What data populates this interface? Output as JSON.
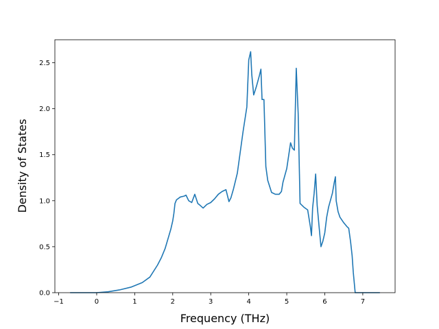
{
  "chart_data": {
    "type": "line",
    "title": "",
    "xlabel": "Frequency (THz)",
    "ylabel": "Density of States",
    "xlim": [
      -1.1,
      7.85
    ],
    "ylim": [
      0.0,
      2.75
    ],
    "xticks": [
      -1,
      0,
      1,
      2,
      3,
      4,
      5,
      6,
      7
    ],
    "xtick_labels": [
      "−1",
      "0",
      "1",
      "2",
      "3",
      "4",
      "5",
      "6",
      "7"
    ],
    "yticks": [
      0.0,
      0.5,
      1.0,
      1.5,
      2.0,
      2.5
    ],
    "ytick_labels": [
      "0.0",
      "0.5",
      "1.0",
      "1.5",
      "2.0",
      "2.5"
    ],
    "grid": false,
    "series": [
      {
        "color": "#1f77b4",
        "x": [
          -0.7,
          0.0,
          0.3,
          0.6,
          0.9,
          1.2,
          1.4,
          1.6,
          1.7,
          1.8,
          1.9,
          1.95,
          2.0,
          2.03,
          2.06,
          2.1,
          2.2,
          2.3,
          2.35,
          2.42,
          2.5,
          2.58,
          2.66,
          2.72,
          2.8,
          2.9,
          3.0,
          3.1,
          3.2,
          3.3,
          3.4,
          3.48,
          3.53,
          3.6,
          3.7,
          3.8,
          3.85,
          3.95,
          4.0,
          4.05,
          4.08,
          4.13,
          4.2,
          4.28,
          4.32,
          4.35,
          4.4,
          4.45,
          4.5,
          4.6,
          4.7,
          4.8,
          4.86,
          4.9,
          5.0,
          5.1,
          5.15,
          5.2,
          5.25,
          5.3,
          5.35,
          5.45,
          5.55,
          5.62,
          5.65,
          5.68,
          5.72,
          5.76,
          5.8,
          5.85,
          5.9,
          5.95,
          6.0,
          6.05,
          6.1,
          6.2,
          6.25,
          6.28,
          6.3,
          6.35,
          6.4,
          6.5,
          6.58,
          6.63,
          6.68,
          6.72,
          6.75,
          6.8,
          7.45
        ],
        "y": [
          0.0,
          0.0,
          0.01,
          0.03,
          0.06,
          0.11,
          0.17,
          0.3,
          0.38,
          0.48,
          0.62,
          0.69,
          0.78,
          0.86,
          0.97,
          1.01,
          1.04,
          1.05,
          1.06,
          1.0,
          0.98,
          1.07,
          0.97,
          0.95,
          0.92,
          0.96,
          0.98,
          1.02,
          1.07,
          1.1,
          1.12,
          0.99,
          1.03,
          1.13,
          1.3,
          1.6,
          1.75,
          2.02,
          2.53,
          2.62,
          2.37,
          2.15,
          2.24,
          2.36,
          2.43,
          2.1,
          2.1,
          1.37,
          1.22,
          1.09,
          1.07,
          1.07,
          1.1,
          1.2,
          1.35,
          1.63,
          1.57,
          1.55,
          2.44,
          1.95,
          0.97,
          0.93,
          0.9,
          0.72,
          0.62,
          0.92,
          1.08,
          1.29,
          0.95,
          0.72,
          0.5,
          0.56,
          0.65,
          0.82,
          0.93,
          1.08,
          1.2,
          1.26,
          1.0,
          0.88,
          0.82,
          0.76,
          0.72,
          0.7,
          0.55,
          0.4,
          0.22,
          0.0,
          0.0
        ]
      }
    ]
  }
}
